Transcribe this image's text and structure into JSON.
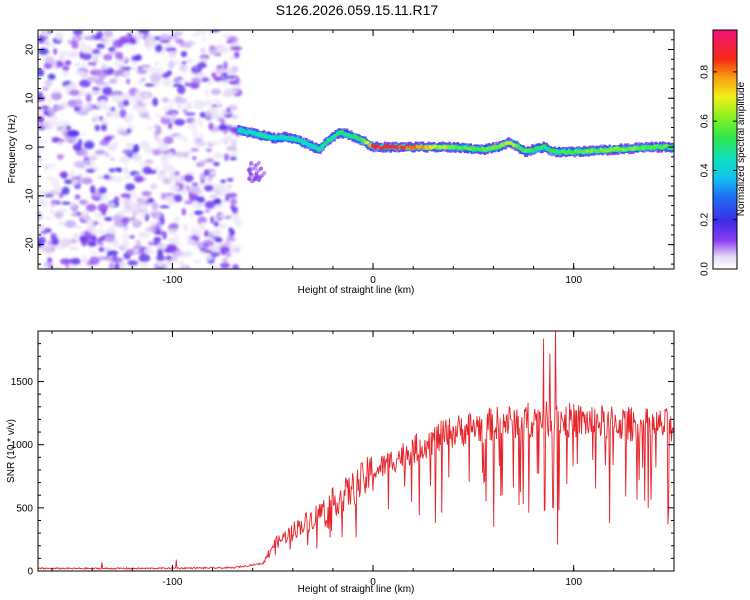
{
  "title": "S126.2026.059.15.11.R17",
  "chart_data": [
    {
      "type": "heatmap",
      "title": "S126.2026.059.15.11.R17",
      "xlabel": "Height of straight line (km)",
      "ylabel": "Frequency (Hz)",
      "xlim": [
        -167,
        150
      ],
      "ylim": [
        -25,
        24
      ],
      "xticks": [
        -100,
        0,
        100
      ],
      "yticks": [
        -20,
        -10,
        0,
        10,
        20
      ],
      "colorbar": {
        "label": "Normalized spectral amplitude",
        "range": [
          0,
          0.97
        ],
        "ticks": [
          0.0,
          0.2,
          0.4,
          0.6,
          0.8
        ]
      },
      "noise_region_km": [
        -167,
        -67
      ],
      "signal_start_km": -67,
      "signal_ridge": {
        "x": [
          -67,
          -62,
          -56,
          -50,
          -44,
          -38,
          -32,
          -27,
          -22,
          -17,
          -12,
          -6,
          0,
          10,
          20,
          40,
          55,
          62,
          68,
          72,
          76,
          80,
          85,
          90,
          100,
          120,
          140,
          150
        ],
        "freq_hz": [
          3.5,
          3,
          2.5,
          1.8,
          2,
          1.5,
          0.5,
          -0.5,
          1.5,
          3,
          2.5,
          1.5,
          0,
          0,
          0,
          0,
          -0.5,
          0,
          1,
          0,
          -1,
          -0.5,
          0,
          -1,
          -1,
          -0.5,
          0,
          0
        ],
        "amplitude": [
          0.45,
          0.45,
          0.5,
          0.45,
          0.45,
          0.5,
          0.45,
          0.5,
          0.5,
          0.55,
          0.5,
          0.55,
          0.93,
          0.93,
          0.85,
          0.6,
          0.6,
          0.6,
          0.75,
          0.6,
          0.6,
          0.55,
          0.55,
          0.55,
          0.6,
          0.65,
          0.6,
          0.6
        ]
      }
    },
    {
      "type": "line",
      "xlabel": "Height of straight line (km)",
      "ylabel": "SNR (10 * v/v)",
      "xlim": [
        -167,
        150
      ],
      "ylim": [
        0,
        1900
      ],
      "xticks": [
        -100,
        0,
        100
      ],
      "yticks": [
        0,
        500,
        1000,
        1500
      ],
      "color": "#e8242a",
      "envelope": {
        "x": [
          -167,
          -120,
          -70,
          -55,
          -50,
          -40,
          -30,
          -20,
          -10,
          0,
          10,
          20,
          30,
          40,
          50,
          60,
          70,
          80,
          90,
          100,
          110,
          120,
          130,
          140,
          150
        ],
        "y": [
          20,
          20,
          25,
          60,
          200,
          320,
          420,
          540,
          650,
          780,
          880,
          960,
          1040,
          1100,
          1140,
          1160,
          1190,
          1200,
          1200,
          1190,
          1180,
          1170,
          1160,
          1150,
          1150
        ]
      },
      "spikes": [
        {
          "x": -135,
          "y": 70
        },
        {
          "x": -98,
          "y": 90
        },
        {
          "x": 31,
          "y": 380
        },
        {
          "x": 60,
          "y": 350
        },
        {
          "x": 70,
          "y": 660
        },
        {
          "x": 75,
          "y": 530
        },
        {
          "x": 85,
          "y": 1840
        },
        {
          "x": 88,
          "y": 1720
        },
        {
          "x": 90,
          "y": 500
        },
        {
          "x": 91,
          "y": 1920
        },
        {
          "x": 92,
          "y": 210
        },
        {
          "x": 118,
          "y": 380
        },
        {
          "x": 146,
          "y": 1270
        },
        {
          "x": 147,
          "y": 370
        }
      ]
    }
  ]
}
